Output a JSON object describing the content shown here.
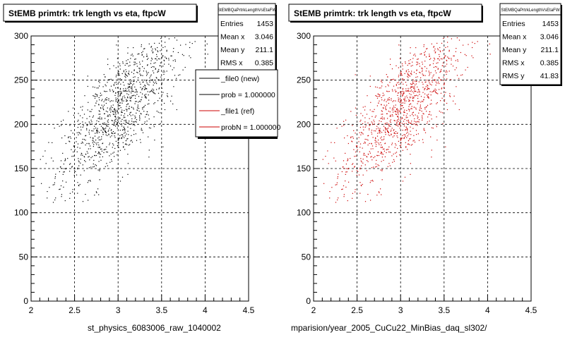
{
  "chart_data": [
    {
      "type": "scatter",
      "title": "StEMB primtrk: trk length vs eta, ftpcW",
      "xlabel": "st_physics_6083006_raw_1040002",
      "xlim": [
        2,
        4.5
      ],
      "ylim": [
        0,
        300
      ],
      "xticks": [
        "2",
        "2.5",
        "3",
        "3.5",
        "4",
        "4.5"
      ],
      "yticks": [
        "0",
        "50",
        "100",
        "150",
        "200",
        "250",
        "300"
      ],
      "grid": true,
      "marker_color": "#000000",
      "stats": {
        "name": "StEMBQaPrtrkLengthVsEtaFW",
        "rows": [
          {
            "label": "Entries",
            "value": "1453"
          },
          {
            "label": "Mean x",
            "value": "3.046"
          },
          {
            "label": "Mean y",
            "value": "211.1"
          },
          {
            "label": "RMS x",
            "value": "0.385"
          }
        ]
      },
      "legend": {
        "placement": "top-right",
        "entries": [
          {
            "label": "_file0 (new)",
            "color": "#000000"
          },
          {
            "label": "prob = 1.000000",
            "color": "#000000"
          },
          {
            "label": "_file1 (ref)",
            "color": "#cc0000"
          },
          {
            "label": "probN = 1.000000",
            "color": "#cc0000"
          }
        ]
      },
      "points": []
    },
    {
      "type": "scatter",
      "title": "StEMB primtrk: trk length vs eta, ftpcW",
      "xlabel": "mparision/year_2005_CuCu22_MinBias_daq_sl302/",
      "xlim": [
        2,
        4.5
      ],
      "ylim": [
        0,
        300
      ],
      "xticks": [
        "2",
        "2.5",
        "3",
        "3.5",
        "4",
        "4.5"
      ],
      "yticks": [
        "0",
        "50",
        "100",
        "150",
        "200",
        "250",
        "300"
      ],
      "grid": true,
      "marker_color": "#cc0000",
      "stats": {
        "name": "StEMBQaPrtrkLengthVsEtaFW",
        "rows": [
          {
            "label": "Entries",
            "value": "1453"
          },
          {
            "label": "Mean x",
            "value": "3.046"
          },
          {
            "label": "Mean y",
            "value": "211.1"
          },
          {
            "label": "RMS x",
            "value": "0.385"
          },
          {
            "label": "RMS y",
            "value": "41.83"
          }
        ]
      },
      "points": []
    }
  ]
}
